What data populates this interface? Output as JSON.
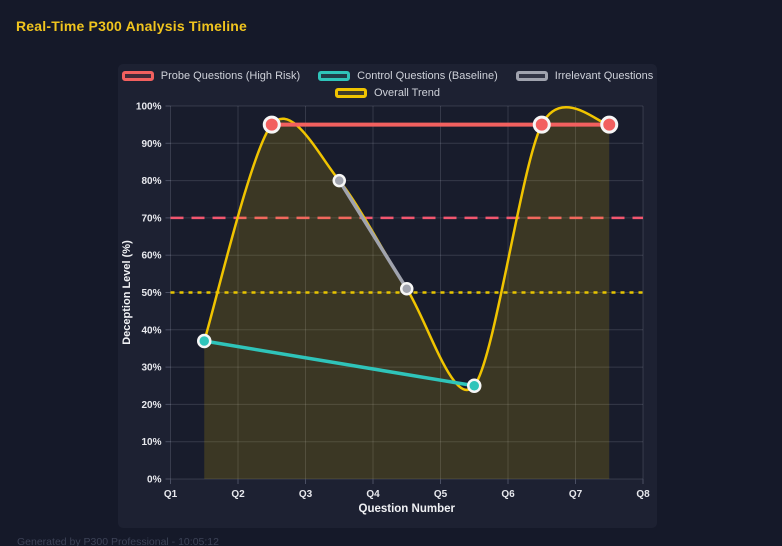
{
  "page": {
    "title": "Real-Time P300 Analysis Timeline",
    "footer": "Generated by P300 Professional - 10:05:12"
  },
  "colors": {
    "page_bg": "#151929",
    "panel_bg": "#1d2132",
    "plot_bg": "#181c2c",
    "grid": "rgba(205,210,230,0.16)",
    "tick": "#4a4f63",
    "tick_label": "#e8e9ee",
    "axis_title": "#f0f1f4",
    "legend_text": "#ced1d9",
    "title_yellow": "#f0c41e",
    "point_border": "#f6f6f6"
  },
  "chart_data": {
    "type": "line",
    "title": "Real-Time P300 Analysis Timeline",
    "xlabel": "Question Number",
    "ylabel": "Deception Level (%)",
    "x_categories": [
      "Q1",
      "Q2",
      "Q3",
      "Q4",
      "Q5",
      "Q6",
      "Q7",
      "Q8"
    ],
    "x_range": [
      1,
      8
    ],
    "ylim": [
      0,
      100
    ],
    "y_ticks": [
      "0%",
      "10%",
      "20%",
      "30%",
      "40%",
      "50%",
      "60%",
      "70%",
      "80%",
      "90%",
      "100%"
    ],
    "grid": true,
    "legend_position": "top",
    "legend_rows": [
      [
        0,
        1,
        2
      ],
      [
        3
      ]
    ],
    "series": [
      {
        "name": "Probe Questions (High Risk)",
        "color": "#f2605f",
        "points": [
          [
            2.5,
            95
          ],
          [
            6.5,
            95
          ],
          [
            7.5,
            95
          ]
        ],
        "line_width": 4,
        "smooth": false,
        "point_radius": 7.5,
        "point_border_width": 3
      },
      {
        "name": "Control Questions (Baseline)",
        "color": "#2fc4ba",
        "points": [
          [
            1.5,
            37
          ],
          [
            5.5,
            25
          ]
        ],
        "line_width": 3.5,
        "smooth": false,
        "point_radius": 6,
        "point_border_width": 2.5
      },
      {
        "name": "Irrelevant Questions",
        "color": "#a0a3ae",
        "points": [
          [
            3.5,
            80
          ],
          [
            4.5,
            51
          ]
        ],
        "line_width": 3.5,
        "smooth": false,
        "point_radius": 5.5,
        "point_border_width": 2.5
      },
      {
        "name": "Overall Trend",
        "color": "#f0c400",
        "points": [
          [
            1.5,
            37
          ],
          [
            2.5,
            95
          ],
          [
            3.5,
            80
          ],
          [
            4.5,
            51
          ],
          [
            5.5,
            25
          ],
          [
            6.5,
            95
          ],
          [
            7.5,
            95
          ]
        ],
        "line_width": 2.5,
        "smooth": true,
        "fill": "rgba(240,196,0,0.16)",
        "point_radius": 0,
        "point_border_width": 0
      }
    ],
    "thresholds": [
      {
        "value": 70,
        "color": "#f2566f",
        "dash": "13 8",
        "width": 2.5
      },
      {
        "value": 50,
        "color": "#e6c400",
        "dash": "4 5",
        "width": 2.5
      }
    ]
  }
}
